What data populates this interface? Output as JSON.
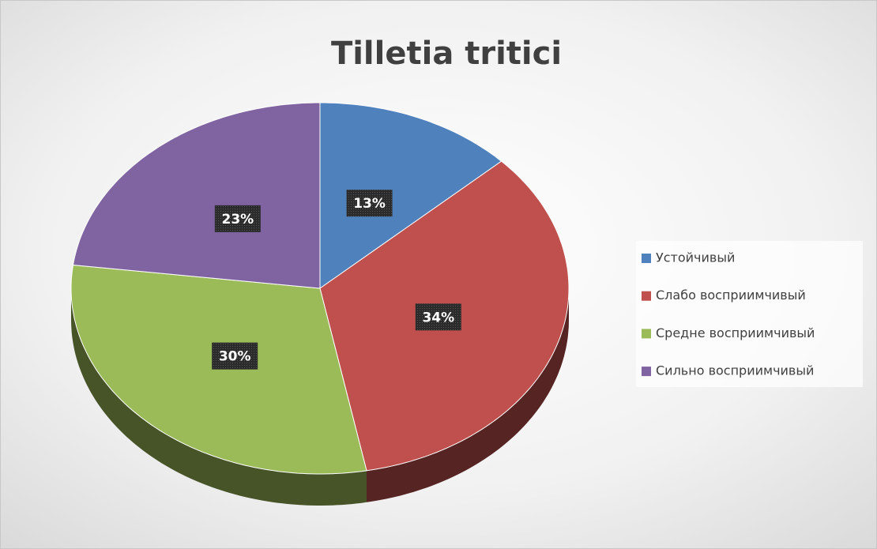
{
  "chart_data": {
    "type": "pie",
    "title": "Tilletia tritici",
    "categories": [
      "Устойчивый",
      "Слабо восприимчивый",
      "Средне восприимчивый",
      "Сильно восприимчивый"
    ],
    "values": [
      13,
      34,
      30,
      23
    ],
    "value_labels": [
      "13%",
      "34%",
      "30%",
      "23%"
    ],
    "colors": [
      "#4f81bd",
      "#c0504d",
      "#9bbb59",
      "#8064a2"
    ],
    "legend": "right"
  }
}
